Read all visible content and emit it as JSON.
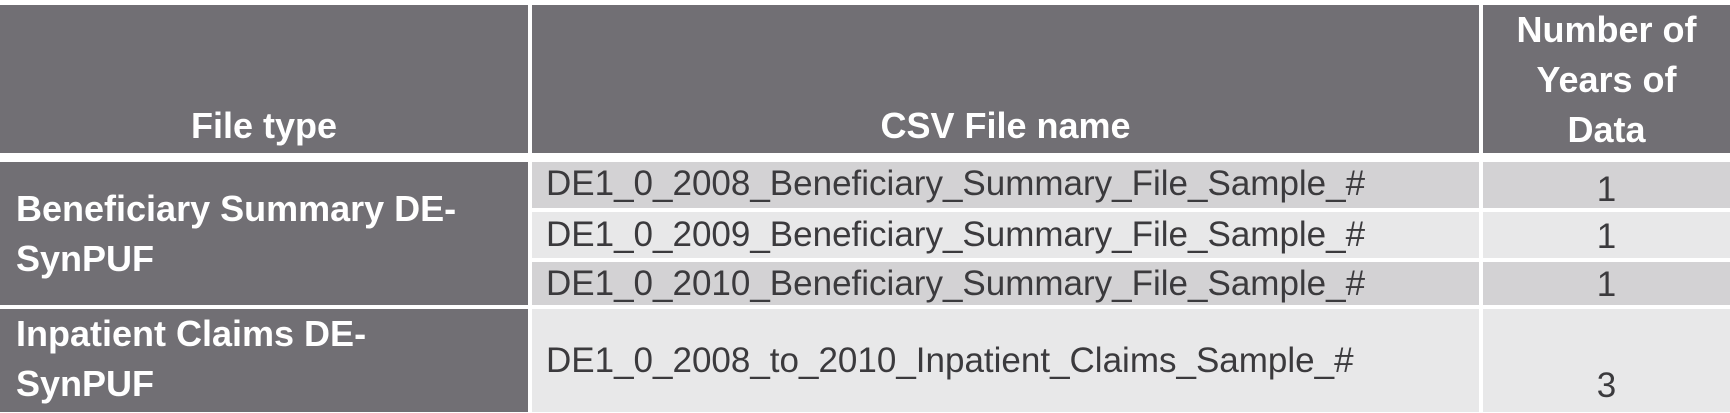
{
  "table": {
    "headers": {
      "file_type": "File type",
      "csv_file_name": "CSV File name",
      "years_of_data": [
        "Number of",
        "Years of",
        "Data"
      ]
    },
    "groups": [
      {
        "file_type": [
          "Beneficiary Summary DE-",
          "SynPUF"
        ],
        "rows": [
          {
            "file_name": "DE1_0_2008_Beneficiary_Summary_File_Sample_#",
            "years": "1"
          },
          {
            "file_name": "DE1_0_2009_Beneficiary_Summary_File_Sample_#",
            "years": "1"
          },
          {
            "file_name": "DE1_0_2010_Beneficiary_Summary_File_Sample_#",
            "years": "1"
          }
        ]
      },
      {
        "file_type": [
          "Inpatient Claims DE-",
          "SynPUF"
        ],
        "rows": [
          {
            "file_name": "DE1_0_2008_to_2010_Inpatient_Claims_Sample_#",
            "years": "3"
          }
        ]
      }
    ]
  }
}
